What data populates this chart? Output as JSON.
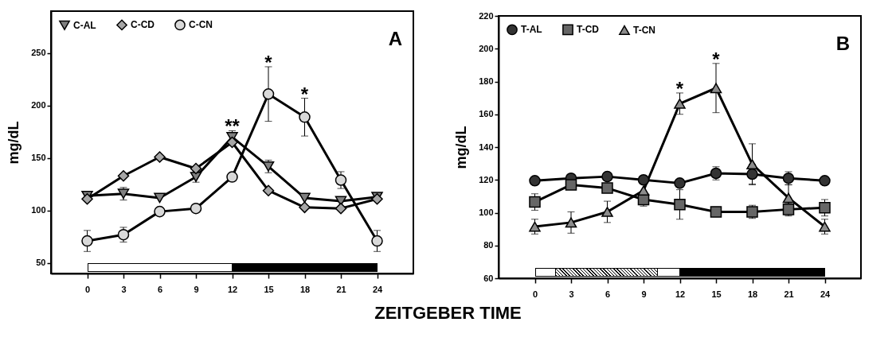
{
  "chart_data": [
    {
      "type": "line",
      "xlabel": "ZEITGEBER TIME",
      "ylabel": "mg/dL",
      "x": [
        0,
        3,
        6,
        9,
        12,
        15,
        18,
        21,
        24
      ],
      "xlim": [
        -3,
        27
      ],
      "xticks": [
        0,
        3,
        6,
        9,
        12,
        15,
        18,
        21,
        24
      ],
      "ylim": [
        40,
        290
      ],
      "yticks": [
        50,
        100,
        150,
        200,
        250
      ],
      "grid": false,
      "legend": "top left",
      "line_style": "solid",
      "series": [
        {
          "name": "C-AL",
          "color": "#808080",
          "marker": "triangle-down",
          "values": [
            114,
            116,
            112,
            132,
            170,
            142,
            112,
            109,
            113
          ],
          "errors": [
            null,
            6,
            null,
            5,
            6,
            6,
            null,
            null,
            null
          ]
        },
        {
          "name": "C-CD",
          "color": "#a6a6a6",
          "marker": "diamond",
          "values": [
            111,
            133,
            151,
            140,
            165,
            119,
            103,
            102,
            111
          ],
          "errors": [
            null,
            null,
            null,
            null,
            null,
            null,
            null,
            null,
            null
          ]
        },
        {
          "name": "C-CN",
          "color": "#d9d9d9",
          "marker": "circle",
          "values": [
            71,
            77,
            99,
            102,
            132,
            211,
            189,
            129,
            71
          ],
          "errors": [
            10,
            7,
            null,
            null,
            null,
            26,
            18,
            8,
            10
          ]
        }
      ],
      "annotations": [
        "A",
        {
          "text": "**",
          "x": 12,
          "y": 176
        },
        {
          "text": "*",
          "x": 15,
          "y": 237
        },
        {
          "text": "*",
          "x": 18,
          "y": 207
        }
      ]
    },
    {
      "type": "line",
      "ylabel": "mg/dL",
      "x": [
        0,
        3,
        6,
        9,
        12,
        15,
        18,
        21,
        24
      ],
      "xlim": [
        -3,
        27
      ],
      "xticks": [
        0,
        3,
        6,
        9,
        12,
        15,
        18,
        21,
        24
      ],
      "ylim": [
        60,
        220
      ],
      "yticks": [
        60,
        80,
        100,
        120,
        140,
        160,
        180,
        200,
        220
      ],
      "grid": false,
      "legend": "top left",
      "line_style": "solid",
      "series": [
        {
          "name": "T-AL",
          "color": "#333333",
          "marker": "circle",
          "values": [
            119.5,
            121,
            122,
            120,
            118,
            124,
            123.5,
            121,
            119.5
          ],
          "errors": [
            null,
            null,
            null,
            null,
            null,
            4,
            6,
            4,
            null
          ]
        },
        {
          "name": "T-CD",
          "color": "#666666",
          "marker": "square",
          "values": [
            106.5,
            117,
            115,
            108,
            105,
            100.5,
            100.5,
            102,
            103
          ],
          "errors": [
            5,
            null,
            null,
            4,
            9,
            3,
            4,
            4,
            5
          ]
        },
        {
          "name": "T-CN",
          "color": "#8c8c8c",
          "marker": "triangle",
          "values": [
            91.5,
            94,
            100.5,
            113.5,
            166.5,
            176,
            129.5,
            109,
            91.5
          ],
          "errors": [
            4.5,
            6.5,
            6.5,
            null,
            6.5,
            15,
            12.5,
            8,
            4.5
          ]
        }
      ],
      "annotations": [
        "B",
        {
          "text": "*",
          "x": 12,
          "y": 173
        },
        {
          "text": "*",
          "x": 15,
          "y": 191
        }
      ]
    }
  ]
}
